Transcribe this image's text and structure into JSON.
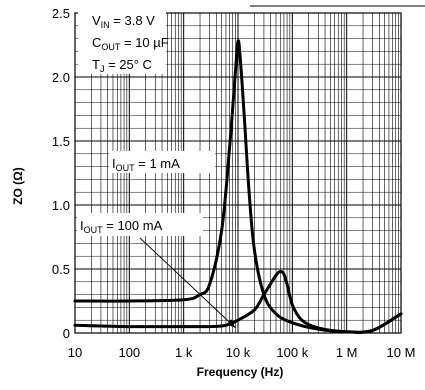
{
  "chart_data": {
    "type": "line",
    "title": "",
    "xlabel": "Frequency (Hz)",
    "ylabel": "ZO (Ω)",
    "x_scale": "log",
    "xlim": [
      10,
      10000000
    ],
    "ylim": [
      0,
      2.5
    ],
    "grid": true,
    "x_tick_labels": [
      "10",
      "100",
      "1 k",
      "10 k",
      "100 k",
      "1 M",
      "10 M"
    ],
    "x_tick_values": [
      10,
      100,
      1000,
      10000,
      100000,
      1000000,
      10000000
    ],
    "y_tick_labels": [
      "0",
      "0.5",
      "1.0",
      "1.5",
      "2.0",
      "2.5"
    ],
    "y_tick_values": [
      0,
      0.5,
      1.0,
      1.5,
      2.0,
      2.5
    ],
    "conditions": {
      "vin": {
        "main": "V",
        "sub": "IN",
        "rest": " = 3.8 V"
      },
      "cout": {
        "main": "C",
        "sub": "OUT",
        "rest": " = 10 µF"
      },
      "tj": {
        "main": "T",
        "sub": "J",
        "rest": " = 25° C"
      }
    },
    "series": [
      {
        "name": "IOUT = 1 mA",
        "label": {
          "main": "I",
          "sub": "OUT",
          "rest": " = 1 mA"
        },
        "x": [
          10,
          100,
          1000,
          2000,
          3000,
          5000,
          7000,
          9000,
          10000,
          11000,
          13000,
          16000,
          20000,
          30000,
          50000,
          100000,
          300000,
          1000000,
          3000000,
          10000000
        ],
        "y": [
          0.25,
          0.25,
          0.26,
          0.3,
          0.38,
          0.8,
          1.45,
          2.05,
          2.28,
          2.15,
          1.7,
          1.1,
          0.65,
          0.3,
          0.15,
          0.08,
          0.03,
          0.01,
          0.02,
          0.15
        ]
      },
      {
        "name": "IOUT = 100 mA",
        "label": {
          "main": "I",
          "sub": "OUT",
          "rest": " = 100 mA"
        },
        "x": [
          10,
          100,
          1000,
          3000,
          6000,
          10000,
          20000,
          30000,
          50000,
          60000,
          70000,
          80000,
          100000,
          150000,
          300000,
          1000000,
          3000000,
          10000000
        ],
        "y": [
          0.06,
          0.05,
          0.05,
          0.05,
          0.06,
          0.1,
          0.18,
          0.3,
          0.45,
          0.48,
          0.46,
          0.38,
          0.22,
          0.1,
          0.04,
          0.01,
          0.02,
          0.15
        ]
      }
    ]
  }
}
